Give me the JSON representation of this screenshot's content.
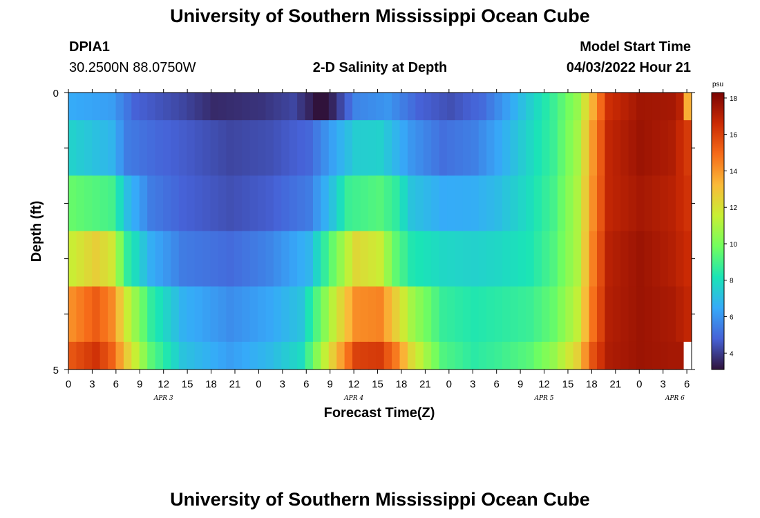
{
  "header": {
    "title": "University of Southern Mississippi Ocean Cube",
    "station": "DPIA1",
    "coords": "30.2500N  88.0750W",
    "plot_title": "2-D Salinity at Depth",
    "model_start_label": "Model Start Time",
    "model_start_value": "04/03/2022 Hour 21"
  },
  "footer": {
    "title": "University of Southern Mississippi Ocean Cube"
  },
  "colors": {
    "colormap": [
      "#30123b",
      "#4662d7",
      "#36aaf9",
      "#1ae4b6",
      "#72fe5e",
      "#c8ef34",
      "#faba39",
      "#f66b19",
      "#ca2a04",
      "#7a0403"
    ]
  },
  "chart_data": {
    "type": "heatmap",
    "title": "2-D Salinity at Depth",
    "xlabel": "Forecast Time(Z)",
    "ylabel": "Depth (ft)",
    "x_tick_labels": [
      "0",
      "3",
      "6",
      "9",
      "12",
      "15",
      "18",
      "21",
      "0",
      "3",
      "6",
      "9",
      "12",
      "15",
      "18",
      "21",
      "0",
      "3",
      "6",
      "9",
      "12",
      "15",
      "18",
      "21",
      "0",
      "3",
      "6"
    ],
    "day_labels": [
      {
        "label": "APR 3",
        "tick_index": 4
      },
      {
        "label": "APR 4",
        "tick_index": 12
      },
      {
        "label": "APR 5",
        "tick_index": 20
      },
      {
        "label": "APR 6",
        "tick_index": 25.5
      }
    ],
    "y_tick_labels": [
      "0",
      "5"
    ],
    "ylim": [
      0,
      5
    ],
    "n_time_steps": 79,
    "colorbar": {
      "unit": "psu",
      "range": [
        3.1,
        18.3
      ],
      "tick_labels": [
        "4",
        "6",
        "8",
        "10",
        "12",
        "14",
        "16",
        "18"
      ]
    },
    "depth_layers": [
      {
        "depth_range": "0-0.5 ft",
        "keyframes": [
          [
            0,
            6.5
          ],
          [
            5,
            6.2
          ],
          [
            8,
            4.8
          ],
          [
            14,
            4.2
          ],
          [
            18,
            3.6
          ],
          [
            24,
            3.8
          ],
          [
            28,
            4.2
          ],
          [
            30,
            3.5
          ],
          [
            31,
            3.1
          ],
          [
            32,
            3.1
          ],
          [
            33,
            3.5
          ],
          [
            36,
            5.6
          ],
          [
            40,
            6.0
          ],
          [
            44,
            4.8
          ],
          [
            48,
            4.4
          ],
          [
            52,
            5.0
          ],
          [
            55,
            6.2
          ],
          [
            58,
            7.5
          ],
          [
            61,
            8.8
          ],
          [
            64,
            10.5
          ],
          [
            66,
            13.5
          ],
          [
            68,
            16.5
          ],
          [
            72,
            17.5
          ],
          [
            76,
            17.4
          ],
          [
            77,
            17.0
          ],
          [
            78,
            13.5
          ]
        ]
      },
      {
        "depth_range": "0.5-1.5 ft",
        "keyframes": [
          [
            0,
            7.6
          ],
          [
            5,
            6.8
          ],
          [
            7,
            5.4
          ],
          [
            11,
            4.9
          ],
          [
            15,
            4.6
          ],
          [
            20,
            4.2
          ],
          [
            25,
            4.4
          ],
          [
            30,
            4.9
          ],
          [
            33,
            6.3
          ],
          [
            36,
            7.5
          ],
          [
            39,
            7.6
          ],
          [
            43,
            6.0
          ],
          [
            47,
            5.1
          ],
          [
            51,
            5.5
          ],
          [
            54,
            6.4
          ],
          [
            58,
            7.8
          ],
          [
            61,
            8.8
          ],
          [
            64,
            10.8
          ],
          [
            66,
            14.0
          ],
          [
            68,
            16.8
          ],
          [
            72,
            17.6
          ],
          [
            76,
            17.2
          ],
          [
            78,
            16.2
          ]
        ]
      },
      {
        "depth_range": "1.5-2.5 ft",
        "keyframes": [
          [
            0,
            9.6
          ],
          [
            5,
            9.0
          ],
          [
            7,
            7.0
          ],
          [
            10,
            5.4
          ],
          [
            14,
            4.8
          ],
          [
            20,
            4.4
          ],
          [
            25,
            4.7
          ],
          [
            30,
            5.4
          ],
          [
            33,
            7.2
          ],
          [
            35,
            8.8
          ],
          [
            39,
            9.3
          ],
          [
            41,
            8.6
          ],
          [
            43,
            7.2
          ],
          [
            47,
            6.5
          ],
          [
            51,
            6.6
          ],
          [
            54,
            7.0
          ],
          [
            58,
            8.0
          ],
          [
            61,
            9.0
          ],
          [
            64,
            11.0
          ],
          [
            66,
            14.2
          ],
          [
            68,
            16.8
          ],
          [
            72,
            17.4
          ],
          [
            76,
            17.0
          ],
          [
            78,
            16.4
          ]
        ]
      },
      {
        "depth_range": "2.5-3.5 ft",
        "keyframes": [
          [
            0,
            11.6
          ],
          [
            3,
            12.6
          ],
          [
            5,
            11.8
          ],
          [
            7,
            8.6
          ],
          [
            10,
            6.6
          ],
          [
            14,
            5.4
          ],
          [
            20,
            5.0
          ],
          [
            25,
            5.6
          ],
          [
            30,
            6.8
          ],
          [
            33,
            9.6
          ],
          [
            36,
            12.3
          ],
          [
            39,
            11.6
          ],
          [
            41,
            9.5
          ],
          [
            43,
            8.3
          ],
          [
            47,
            7.8
          ],
          [
            51,
            7.6
          ],
          [
            54,
            7.8
          ],
          [
            58,
            8.2
          ],
          [
            61,
            9.2
          ],
          [
            64,
            11.0
          ],
          [
            66,
            14.5
          ],
          [
            68,
            17.0
          ],
          [
            72,
            17.6
          ],
          [
            76,
            17.1
          ],
          [
            78,
            16.6
          ]
        ]
      },
      {
        "depth_range": "3.5-4.5 ft",
        "keyframes": [
          [
            0,
            14.2
          ],
          [
            3,
            15.3
          ],
          [
            5,
            14.3
          ],
          [
            7,
            11.5
          ],
          [
            10,
            8.6
          ],
          [
            14,
            6.7
          ],
          [
            20,
            5.8
          ],
          [
            25,
            6.4
          ],
          [
            29,
            7.2
          ],
          [
            33,
            11.3
          ],
          [
            36,
            14.2
          ],
          [
            39,
            14.4
          ],
          [
            41,
            12.6
          ],
          [
            43,
            10.8
          ],
          [
            47,
            8.7
          ],
          [
            51,
            8.3
          ],
          [
            54,
            8.5
          ],
          [
            58,
            8.8
          ],
          [
            61,
            9.6
          ],
          [
            64,
            11.4
          ],
          [
            66,
            14.8
          ],
          [
            68,
            17.1
          ],
          [
            72,
            17.6
          ],
          [
            76,
            17.3
          ],
          [
            78,
            16.8
          ]
        ]
      },
      {
        "depth_range": "4.5-5 ft",
        "keyframes": [
          [
            0,
            15.5
          ],
          [
            3,
            16.4
          ],
          [
            5,
            15.2
          ],
          [
            7,
            12.6
          ],
          [
            10,
            9.4
          ],
          [
            14,
            7.2
          ],
          [
            20,
            6.2
          ],
          [
            25,
            6.9
          ],
          [
            29,
            7.9
          ],
          [
            33,
            12.6
          ],
          [
            36,
            16.0
          ],
          [
            39,
            16.2
          ],
          [
            41,
            14.6
          ],
          [
            43,
            12.2
          ],
          [
            47,
            9.2
          ],
          [
            51,
            8.5
          ],
          [
            54,
            8.8
          ],
          [
            58,
            9.4
          ],
          [
            61,
            10.5
          ],
          [
            64,
            12.5
          ],
          [
            66,
            15.6
          ],
          [
            68,
            17.2
          ],
          [
            72,
            17.6
          ],
          [
            76,
            17.4
          ],
          [
            77,
            17.4
          ],
          [
            78,
            null
          ]
        ]
      }
    ]
  }
}
